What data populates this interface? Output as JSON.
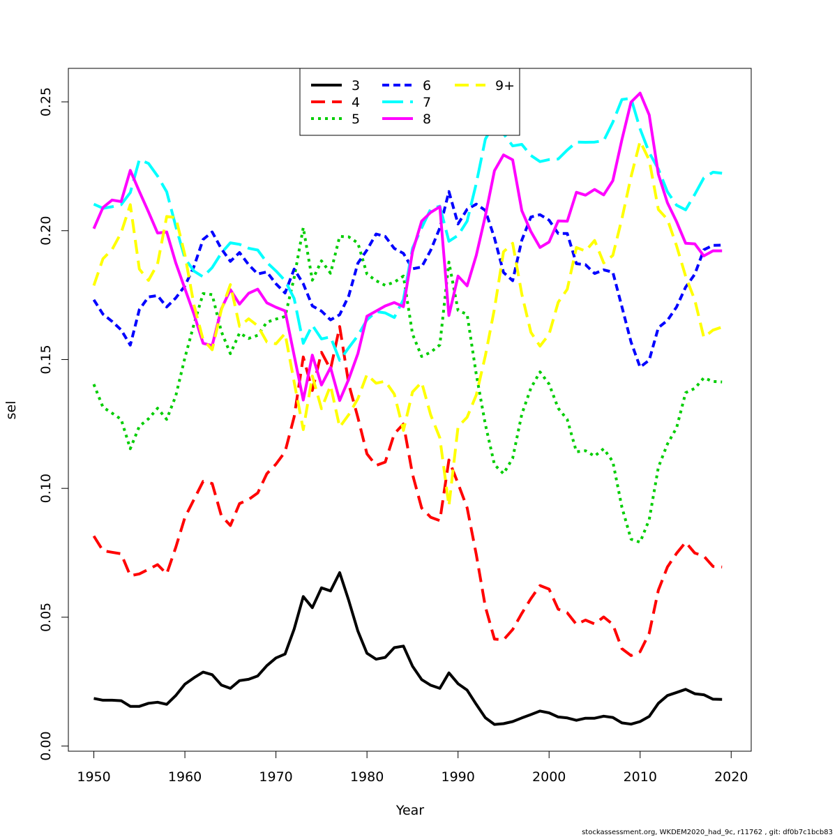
{
  "chart_data": {
    "type": "line",
    "title": "",
    "xlabel": "Year",
    "ylabel": "sel",
    "xlim": [
      1947.2,
      2022.2
    ],
    "ylim": [
      -0.002,
      0.263
    ],
    "xticks": [
      1950,
      1960,
      1970,
      1980,
      1990,
      2000,
      2010,
      2020
    ],
    "yticks": [
      "0.00",
      "0.05",
      "0.10",
      "0.15",
      "0.20",
      "0.25"
    ],
    "ytick_values": [
      0.0,
      0.05,
      0.1,
      0.15,
      0.2,
      0.25
    ],
    "grid": false,
    "legend_position": "top-center",
    "x": [
      1950,
      1951,
      1952,
      1953,
      1954,
      1955,
      1956,
      1957,
      1958,
      1959,
      1960,
      1961,
      1962,
      1963,
      1964,
      1965,
      1966,
      1967,
      1968,
      1969,
      1970,
      1971,
      1972,
      1973,
      1974,
      1975,
      1976,
      1977,
      1978,
      1979,
      1980,
      1981,
      1982,
      1983,
      1984,
      1985,
      1986,
      1987,
      1988,
      1989,
      1990,
      1991,
      1992,
      1993,
      1994,
      1995,
      1996,
      1997,
      1998,
      1999,
      2000,
      2001,
      2002,
      2003,
      2004,
      2005,
      2006,
      2007,
      2008,
      2009,
      2010,
      2011,
      2012,
      2013,
      2014,
      2015,
      2016,
      2017,
      2018,
      2019
    ],
    "series": [
      {
        "name": "3",
        "color": "#000000",
        "dash": "solid",
        "values": [
          0.0185,
          0.0178,
          0.0178,
          0.0176,
          0.0154,
          0.0154,
          0.0166,
          0.017,
          0.0162,
          0.0196,
          0.024,
          0.0265,
          0.0287,
          0.0277,
          0.0237,
          0.0224,
          0.0254,
          0.0259,
          0.0272,
          0.0312,
          0.0342,
          0.0357,
          0.0454,
          0.058,
          0.0537,
          0.0614,
          0.0602,
          0.0673,
          0.0565,
          0.0446,
          0.036,
          0.0337,
          0.0344,
          0.0382,
          0.0388,
          0.031,
          0.0258,
          0.0236,
          0.0224,
          0.0284,
          0.0242,
          0.0217,
          0.0162,
          0.011,
          0.0084,
          0.0087,
          0.0095,
          0.0109,
          0.0122,
          0.0136,
          0.0129,
          0.0113,
          0.0109,
          0.01,
          0.0108,
          0.0108,
          0.0116,
          0.0111,
          0.009,
          0.0085,
          0.0095,
          0.0115,
          0.0166,
          0.0196,
          0.0208,
          0.022,
          0.0203,
          0.0199,
          0.0182,
          0.0181
        ]
      },
      {
        "name": "4",
        "color": "#ff0000",
        "dash": "long",
        "values": [
          0.0815,
          0.0758,
          0.0752,
          0.0746,
          0.0661,
          0.0668,
          0.0686,
          0.0704,
          0.0668,
          0.0771,
          0.0887,
          0.0957,
          0.1027,
          0.1019,
          0.0894,
          0.0856,
          0.0941,
          0.0957,
          0.0982,
          0.1057,
          0.1094,
          0.1142,
          0.1277,
          0.151,
          0.138,
          0.1528,
          0.1462,
          0.1628,
          0.1405,
          0.1275,
          0.1134,
          0.1089,
          0.1102,
          0.1212,
          0.125,
          0.1055,
          0.0924,
          0.0888,
          0.0875,
          0.111,
          0.1019,
          0.0925,
          0.0744,
          0.0541,
          0.0415,
          0.0412,
          0.0452,
          0.0515,
          0.0572,
          0.0623,
          0.0609,
          0.0531,
          0.0517,
          0.0472,
          0.0489,
          0.0474,
          0.0501,
          0.0472,
          0.0378,
          0.0351,
          0.0366,
          0.0438,
          0.0605,
          0.0695,
          0.0748,
          0.0791,
          0.0749,
          0.0737,
          0.0697,
          0.0695
        ]
      },
      {
        "name": "5",
        "color": "#00cd00",
        "dash": "dotted",
        "values": [
          0.1404,
          0.1315,
          0.1292,
          0.1268,
          0.1154,
          0.1241,
          0.127,
          0.1311,
          0.1268,
          0.1359,
          0.1507,
          0.1637,
          0.1756,
          0.1752,
          0.1609,
          0.1523,
          0.1603,
          0.1582,
          0.1594,
          0.1645,
          0.1657,
          0.1667,
          0.1817,
          0.2012,
          0.1808,
          0.1883,
          0.1835,
          0.1978,
          0.1976,
          0.1952,
          0.1832,
          0.1806,
          0.1788,
          0.18,
          0.1824,
          0.1599,
          0.1512,
          0.1528,
          0.1557,
          0.1878,
          0.1691,
          0.1675,
          0.1443,
          0.1249,
          0.1092,
          0.1057,
          0.1117,
          0.1288,
          0.1389,
          0.1452,
          0.1405,
          0.1311,
          0.1267,
          0.1142,
          0.1146,
          0.1125,
          0.1154,
          0.1104,
          0.0927,
          0.0803,
          0.0791,
          0.0879,
          0.1082,
          0.1172,
          0.1235,
          0.1371,
          0.1388,
          0.1429,
          0.1415,
          0.1413
        ]
      },
      {
        "name": "6",
        "color": "#0000ff",
        "dash": "dashed",
        "values": [
          0.1732,
          0.1676,
          0.1648,
          0.1615,
          0.1556,
          0.1694,
          0.1743,
          0.1748,
          0.1704,
          0.1739,
          0.1786,
          0.1861,
          0.1966,
          0.1995,
          0.193,
          0.1881,
          0.1915,
          0.1868,
          0.1832,
          0.184,
          0.1794,
          0.1758,
          0.1851,
          0.1794,
          0.1708,
          0.1688,
          0.1654,
          0.1674,
          0.1747,
          0.1874,
          0.1925,
          0.1987,
          0.1978,
          0.1931,
          0.1912,
          0.1852,
          0.1859,
          0.1924,
          0.2011,
          0.2152,
          0.2026,
          0.2083,
          0.2103,
          0.2079,
          0.1972,
          0.1838,
          0.1806,
          0.1963,
          0.2053,
          0.2062,
          0.2041,
          0.1989,
          0.1989,
          0.1872,
          0.1868,
          0.1834,
          0.1848,
          0.1839,
          0.1705,
          0.1568,
          0.147,
          0.1498,
          0.1624,
          0.1652,
          0.1704,
          0.1781,
          0.1831,
          0.1926,
          0.1943,
          0.1944
        ]
      },
      {
        "name": "7",
        "color": "#00ffff",
        "dash": "longdash",
        "values": [
          0.2103,
          0.2087,
          0.2093,
          0.2101,
          0.2148,
          0.2276,
          0.2261,
          0.2212,
          0.2151,
          0.2017,
          0.1893,
          0.1843,
          0.1821,
          0.1857,
          0.1913,
          0.1953,
          0.1947,
          0.1932,
          0.1925,
          0.1877,
          0.1844,
          0.1806,
          0.1737,
          0.1563,
          0.1633,
          0.158,
          0.1588,
          0.1497,
          0.1546,
          0.1593,
          0.1654,
          0.1686,
          0.1681,
          0.1663,
          0.1733,
          0.1932,
          0.2011,
          0.2084,
          0.2095,
          0.1959,
          0.1982,
          0.2037,
          0.2183,
          0.2355,
          0.2419,
          0.2376,
          0.2329,
          0.2335,
          0.2292,
          0.2268,
          0.2276,
          0.2278,
          0.2313,
          0.2344,
          0.2343,
          0.2344,
          0.2349,
          0.2421,
          0.2509,
          0.2514,
          0.2395,
          0.2303,
          0.2239,
          0.2151,
          0.2099,
          0.2081,
          0.2141,
          0.2205,
          0.2227,
          0.2223
        ]
      },
      {
        "name": "8",
        "color": "#ff00ff",
        "dash": "solid",
        "values": [
          0.2008,
          0.209,
          0.2119,
          0.2113,
          0.2234,
          0.2152,
          0.2073,
          0.1991,
          0.1995,
          0.1875,
          0.1775,
          0.1676,
          0.1563,
          0.1554,
          0.1696,
          0.1771,
          0.1715,
          0.1757,
          0.1773,
          0.172,
          0.1703,
          0.1689,
          0.1516,
          0.1343,
          0.1517,
          0.1401,
          0.1469,
          0.1341,
          0.1424,
          0.1523,
          0.1668,
          0.1688,
          0.1708,
          0.1721,
          0.1705,
          0.1918,
          0.2037,
          0.2071,
          0.2093,
          0.1671,
          0.1824,
          0.1786,
          0.1904,
          0.2057,
          0.2233,
          0.2294,
          0.2275,
          0.2078,
          0.1997,
          0.1935,
          0.1956,
          0.2038,
          0.2037,
          0.2149,
          0.2138,
          0.216,
          0.2139,
          0.2194,
          0.2353,
          0.2499,
          0.2534,
          0.2449,
          0.2219,
          0.2108,
          0.2035,
          0.1951,
          0.1949,
          0.1902,
          0.1922,
          0.1922
        ]
      },
      {
        "name": "9+",
        "color": "#ffff00",
        "dash": "long",
        "values": [
          0.1787,
          0.1891,
          0.1927,
          0.1992,
          0.2101,
          0.1851,
          0.1807,
          0.1871,
          0.2055,
          0.2051,
          0.1906,
          0.1712,
          0.1577,
          0.1538,
          0.1692,
          0.1791,
          0.1629,
          0.1658,
          0.1631,
          0.1568,
          0.1561,
          0.1601,
          0.1413,
          0.1228,
          0.1436,
          0.1309,
          0.1399,
          0.1238,
          0.1286,
          0.1348,
          0.1442,
          0.1408,
          0.1416,
          0.1366,
          0.1225,
          0.1374,
          0.1412,
          0.1285,
          0.1196,
          0.0932,
          0.1239,
          0.1276,
          0.1362,
          0.1514,
          0.1697,
          0.1918,
          0.1951,
          0.1754,
          0.1606,
          0.1552,
          0.1598,
          0.1722,
          0.1773,
          0.1935,
          0.1921,
          0.1962,
          0.1875,
          0.1904,
          0.2046,
          0.2209,
          0.2347,
          0.2274,
          0.2082,
          0.2044,
          0.1941,
          0.1823,
          0.1731,
          0.1586,
          0.1614,
          0.1626
        ]
      }
    ]
  },
  "caption": "stockassessment.org, WKDEM2020_had_9c, r11762 , git: df0b7c1bcb83"
}
